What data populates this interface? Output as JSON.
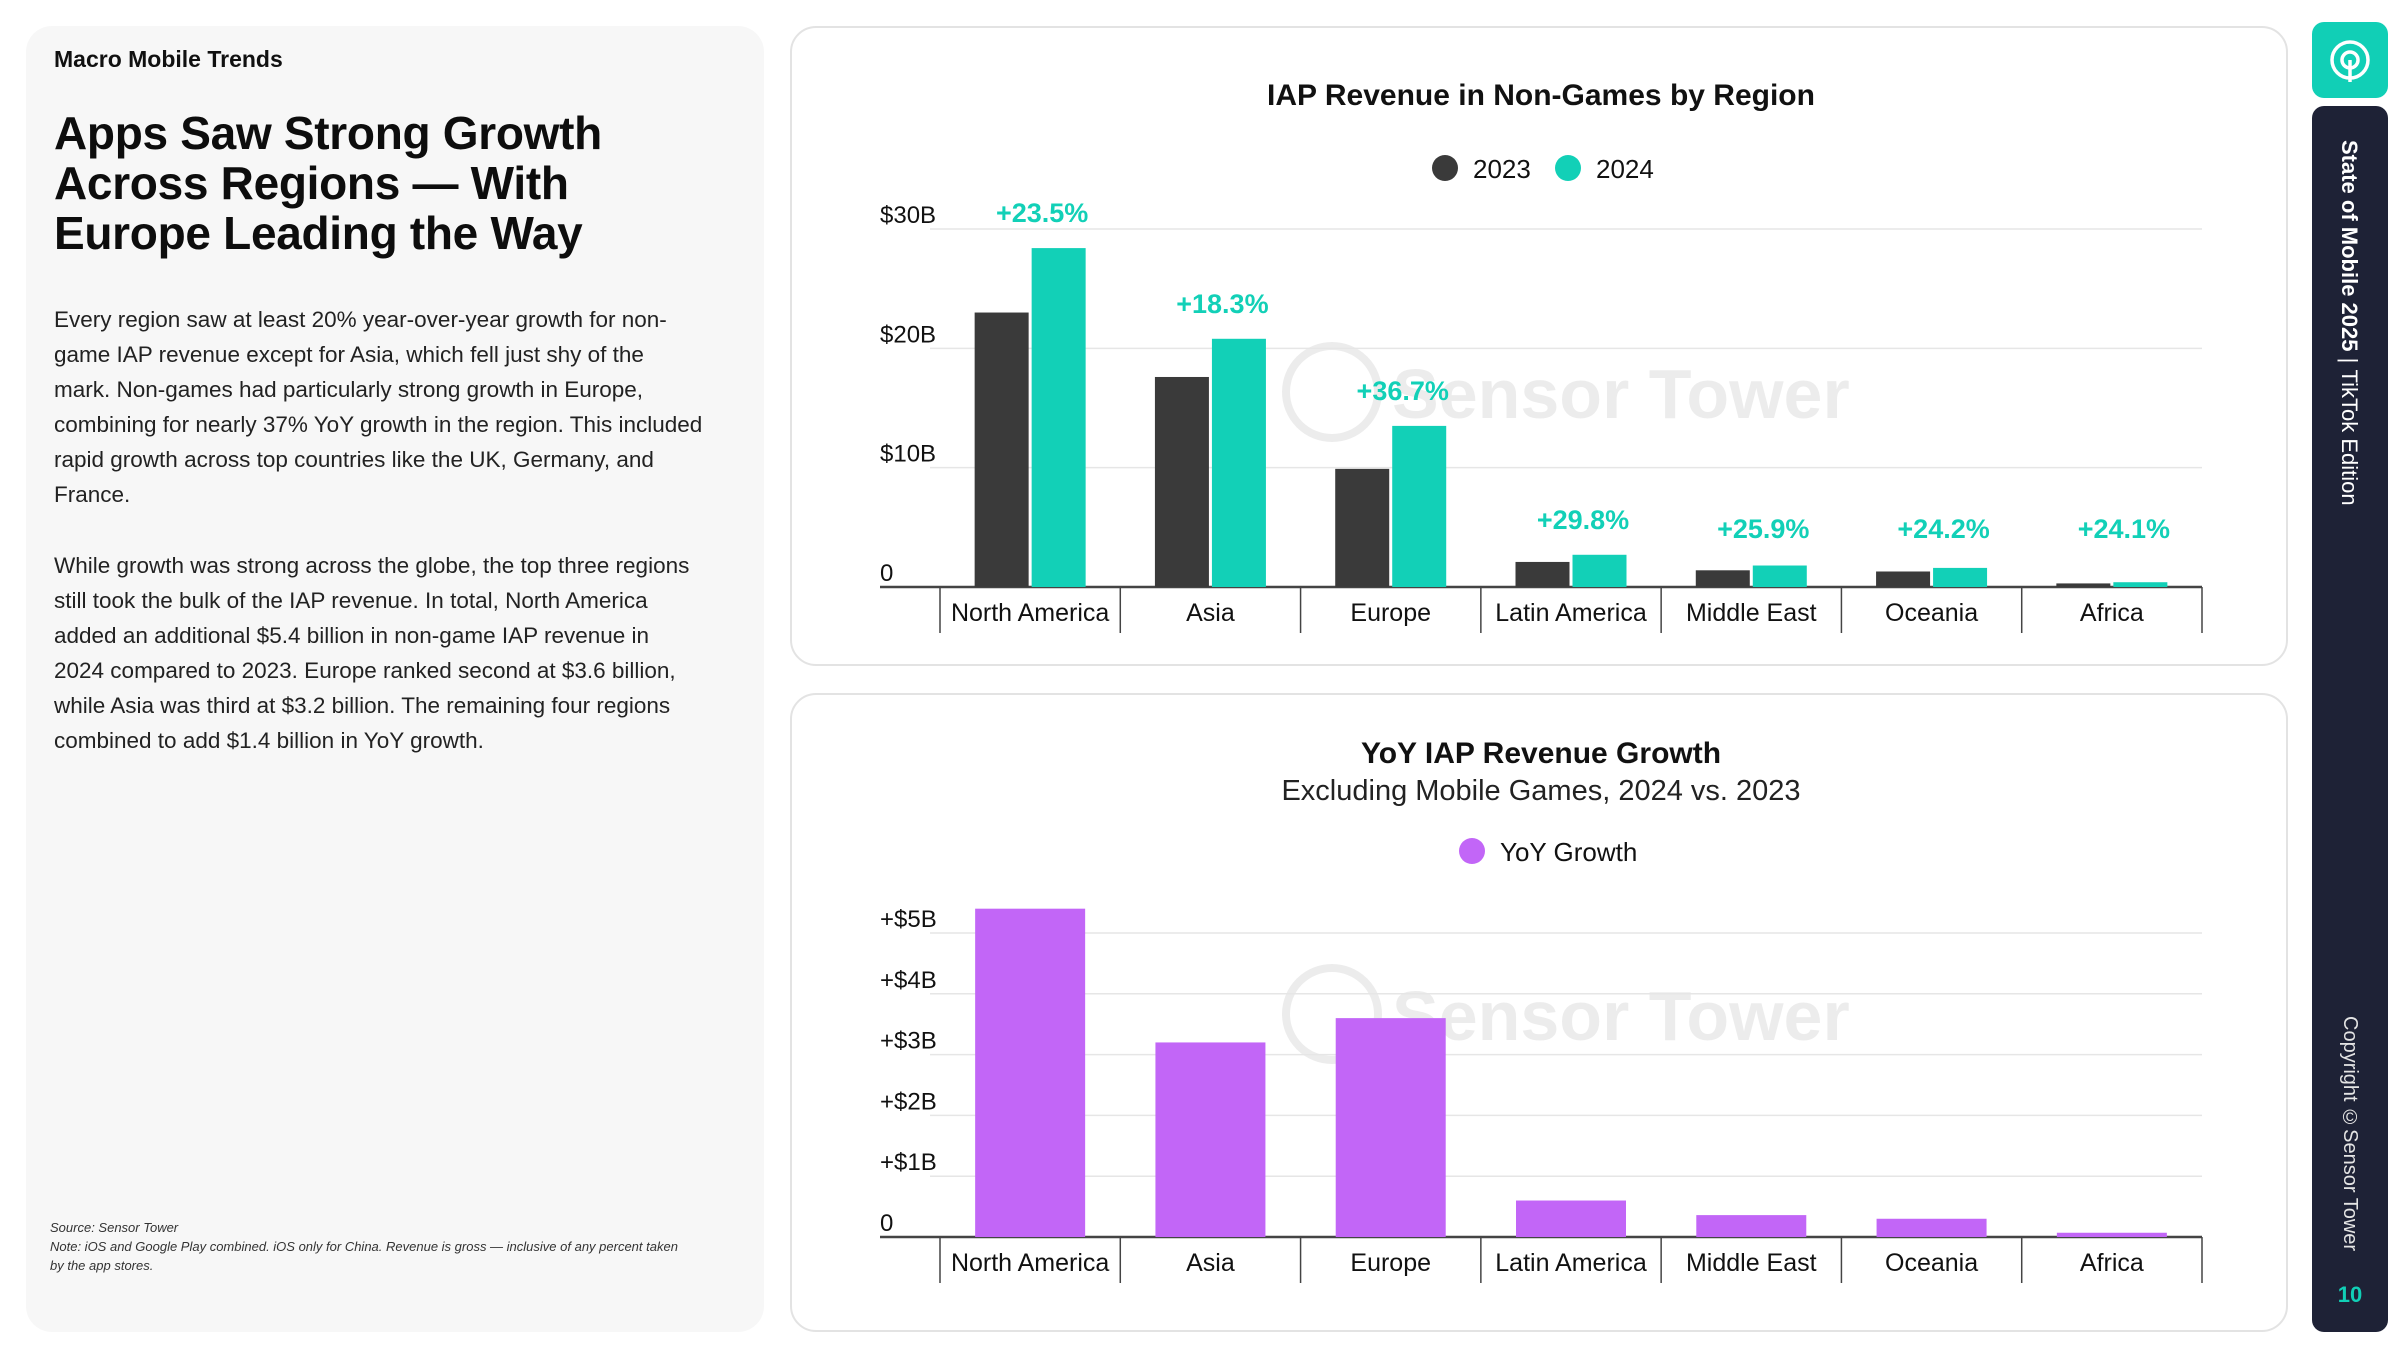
{
  "left": {
    "section_label": "Macro Mobile Trends",
    "headline": "Apps Saw Strong Growth Across Regions — With Europe Leading the Way",
    "paragraph1": "Every region saw at least 20% year-over-year growth for non-game IAP revenue except for Asia, which fell just shy of the mark. Non-games had particularly strong growth in Europe, combining for nearly 37% YoY growth in the region. This included rapid growth across top countries like the UK, Germany, and France.",
    "paragraph2": "While growth was strong across the globe, the top three regions still took the bulk of the IAP revenue. In total, North America added an additional $5.4 billion in non-game IAP revenue in 2024 compared to 2023. Europe ranked second at $3.6 billion, while Asia was third at $3.2 billion. The remaining four regions combined to add $1.4 billion in YoY growth.",
    "source": "Source: Sensor Tower",
    "note": "Note: iOS and Google Play combined. iOS only for China. Revenue is gross — inclusive of any percent taken by the app stores."
  },
  "sidebar": {
    "title_bold": "State of Mobile 2025",
    "title_sep": " | ",
    "title_rest": "TikTok Edition",
    "copyright": "Copyright ©Sensor Tower",
    "page_number": "10",
    "logo_icon": "sensor-tower-logo-icon"
  },
  "watermark": "Sensor Tower",
  "colors": {
    "dark": "#3a3a3a",
    "teal": "#12d0b7",
    "purple": "#c266f7",
    "grid": "#e6e6e6",
    "axis": "#444444"
  },
  "chart_data": [
    {
      "type": "bar",
      "title": "IAP Revenue in Non-Games by Region",
      "categories": [
        "North America",
        "Asia",
        "Europe",
        "Latin America",
        "Middle East",
        "Oceania",
        "Africa"
      ],
      "series": [
        {
          "name": "2023",
          "values": [
            23.0,
            17.6,
            9.9,
            2.1,
            1.4,
            1.3,
            0.3
          ]
        },
        {
          "name": "2024",
          "values": [
            28.4,
            20.8,
            13.5,
            2.7,
            1.8,
            1.6,
            0.4
          ]
        }
      ],
      "annotations": [
        "+23.5%",
        "+18.3%",
        "+36.7%",
        "+29.8%",
        "+25.9%",
        "+24.2%",
        "+24.1%"
      ],
      "yticks": [
        0,
        10,
        20,
        30
      ],
      "ytick_labels": [
        "0",
        "$10B",
        "$20B",
        "$30B"
      ],
      "ylim": [
        0,
        30
      ],
      "grid": true,
      "legend_position": "top-center"
    },
    {
      "type": "bar",
      "title": "YoY IAP Revenue Growth",
      "subtitle": "Excluding Mobile Games, 2024 vs. 2023",
      "categories": [
        "North America",
        "Asia",
        "Europe",
        "Latin America",
        "Middle East",
        "Oceania",
        "Africa"
      ],
      "series": [
        {
          "name": "YoY Growth",
          "values": [
            5.4,
            3.2,
            3.6,
            0.6,
            0.36,
            0.3,
            0.07
          ]
        }
      ],
      "yticks": [
        0,
        1,
        2,
        3,
        4,
        5
      ],
      "ytick_labels": [
        "0",
        "+$1B",
        "+$2B",
        "+$3B",
        "+$4B",
        "+$5B"
      ],
      "ylim": [
        0,
        5
      ],
      "grid": true,
      "legend_position": "top-center"
    }
  ]
}
